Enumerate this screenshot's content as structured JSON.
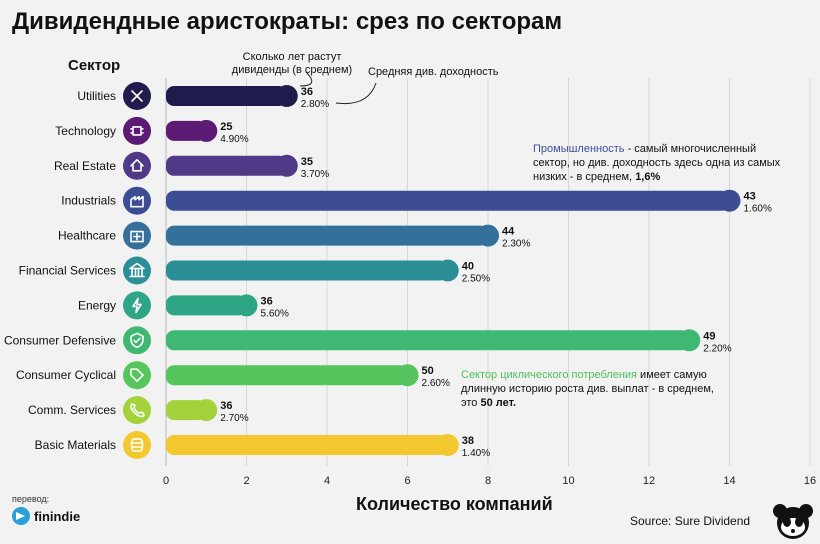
{
  "title": "Дивидендные аристократы: срез по секторам",
  "sector_header": "Сектор",
  "annotations": {
    "years_note": "Сколько лет растут дивиденды (в среднем)",
    "yield_note": "Средняя див. доходность"
  },
  "notes": {
    "industrials_highlight": "Промышленность",
    "industrials_text": " - самый многочисленный сектор, но див. доходность здесь одна из самых низких - в среднем, ",
    "industrials_value": "1,6%",
    "cyclical_highlight": "Сектор циклического потребления",
    "cyclical_text": " имеет самую длинную историю роста див. выплат - в среднем, это ",
    "cyclical_value": "50 лет."
  },
  "footer": {
    "translation_label": "перевод:",
    "brand": "finindie",
    "source": "Source: Sure Dividend"
  },
  "chart_data": {
    "type": "bar",
    "orientation": "horizontal",
    "xlabel": "Количество компаний",
    "xlim": [
      0,
      16
    ],
    "xticks": [
      0,
      2,
      4,
      6,
      8,
      10,
      12,
      14,
      16
    ],
    "categories": [
      "Utilities",
      "Technology",
      "Real Estate",
      "Industrials",
      "Healthcare",
      "Financial Services",
      "Energy",
      "Consumer Defensive",
      "Consumer Cyclical",
      "Comm. Services",
      "Basic Materials"
    ],
    "values": [
      3,
      1,
      3,
      14,
      8,
      7,
      2,
      13,
      6,
      1,
      7
    ],
    "years_growing": [
      "36",
      "25",
      "35",
      "43",
      "44",
      "40",
      "36",
      "49",
      "50",
      "36",
      "38"
    ],
    "avg_yield": [
      "2.80%",
      "4.90%",
      "3.70%",
      "1.60%",
      "2.30%",
      "2.50%",
      "5.60%",
      "2.20%",
      "2.60%",
      "2.70%",
      "1.40%"
    ],
    "colors": [
      "#1f1b4d",
      "#5b1a74",
      "#4e3a87",
      "#3c4d93",
      "#35709b",
      "#2c8e96",
      "#2ea584",
      "#3fb873",
      "#56c55d",
      "#a3d23a",
      "#f3c72e"
    ],
    "icons": [
      "tools-icon",
      "chip-icon",
      "house-icon",
      "factory-icon",
      "medical-bag-icon",
      "bank-icon",
      "energy-icon",
      "shield-check-icon",
      "tag-icon",
      "phone-icon",
      "barrel-icon"
    ]
  }
}
